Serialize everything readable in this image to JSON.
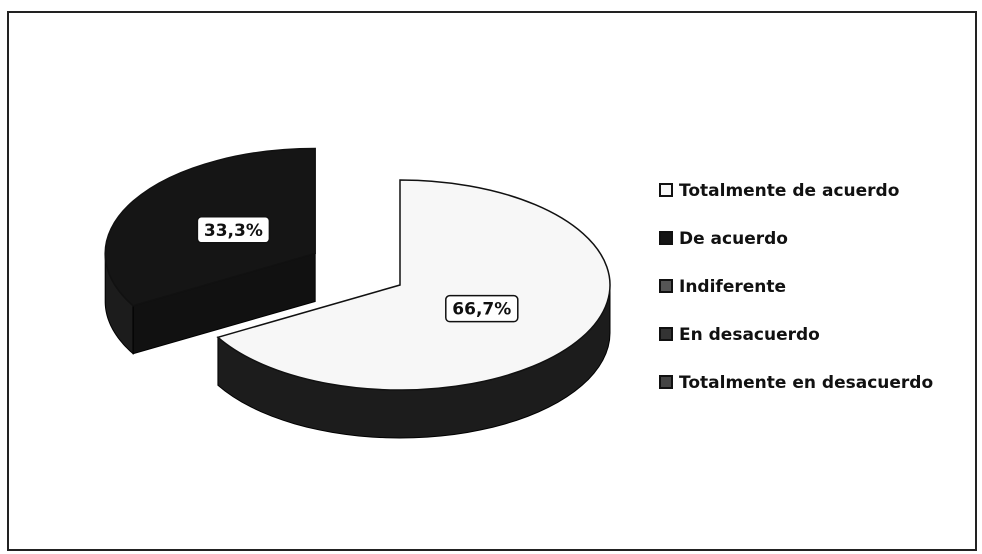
{
  "chart_data": {
    "type": "pie",
    "categories": [
      "Totalmente de acuerdo",
      "De acuerdo",
      "Indiferente",
      "En desacuerdo",
      "Totalmente en desacuerdo"
    ],
    "values": [
      66.7,
      33.3,
      0,
      0,
      0
    ],
    "value_labels": [
      "66,7%",
      "33,3%",
      null,
      null,
      null
    ],
    "colors": [
      "#f7f7f7",
      "#151515",
      "#555555",
      "#333333",
      "#444444"
    ],
    "legend": "right"
  }
}
